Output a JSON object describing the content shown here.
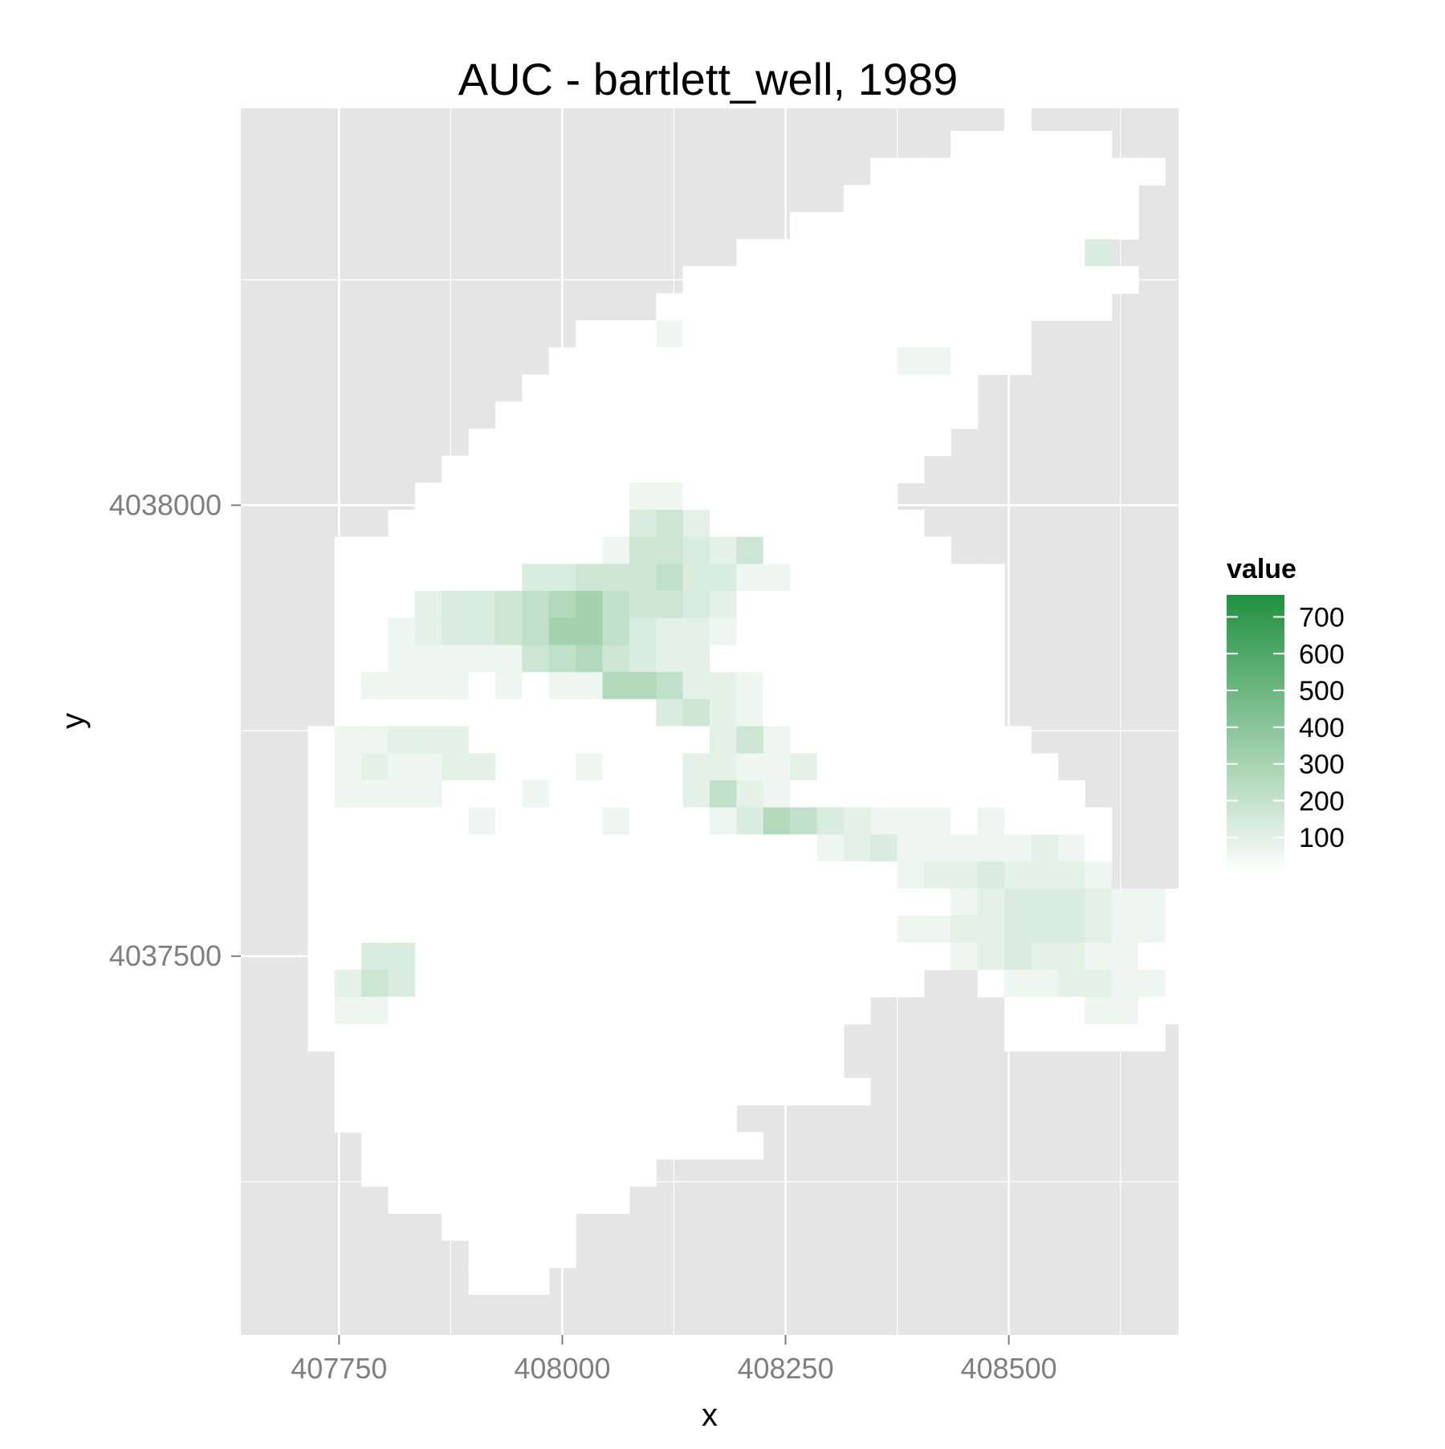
{
  "chart_data": {
    "type": "heatmap",
    "title": "AUC - bartlett_well, 1989",
    "xlabel": "x",
    "ylabel": "y",
    "xlim": [
      407640,
      408690
    ],
    "ylim": [
      4037080,
      4038440
    ],
    "x_ticks": [
      {
        "value": 407750,
        "label": "407750"
      },
      {
        "value": 408000,
        "label": "408000"
      },
      {
        "value": 408250,
        "label": "408250"
      },
      {
        "value": 408500,
        "label": "408500"
      }
    ],
    "y_ticks": [
      {
        "value": 4037500,
        "label": "4037500"
      },
      {
        "value": 4038000,
        "label": "4038000"
      }
    ],
    "x_minor_grid": [
      407875,
      408125,
      408375,
      408625
    ],
    "y_minor_grid": [
      4037250,
      4037750,
      4038250
    ],
    "grid": true,
    "cell_size": 30,
    "x_origin": 407700,
    "y_origin": 4037140,
    "fill_scale": {
      "low_color": "#FFFFFF",
      "high_color": "#21913F",
      "min": 0,
      "max": 760
    },
    "background_color": "#E5E5E5",
    "grid_color": "#FFFFFF",
    "rows_top_to_bottom": [
      "...........................0.........",
      ".........................000000......",
      "......................00000000000....",
      ".....................00000000000.....",
      "...................0000000000000.....",
      ".................00000000000003......",
      "...............00000000000000000.....",
      "..............00000000000000000......",
      "...........00010000000000000.........",
      "..........000000000000011000.........",
      ".........00000000000000000...........",
      "........000000000000000000...........",
      ".......000000000000000000............",
      "......000000000000000000.............",
      ".....000000001100000000..............",
      "....00000000034200000000.............",
      "..00000000001443240000000............",
      "..0000000334445331100000000..........",
      "..0002334567544320000000000..........",
      "..0012334577532210000000000..........",
      "..0011111456432200000000000..........",
      "..0111101011665221000000000..........",
      "..0000000000003421000000000..........",
      ".011222000000000241000000000.........",
      ".0121122000100022112000000000........",
      ".01111000100000252100000000000.......",
      ".000000100001000136532111010000......",
      ".000000000000000000012311111210......",
      ".000000000000000000000012232221......",
      ".000000000000000000000000123332110...",
      ".000000000000000000000011223332110...",
      ".003300000000000000000000123221100...",
      ".02430000000000000000000..01122110...",
      ".011000000000000000000.....00011000..",
      ".00000000000000000000......000000....",
      "..0000000000000000000................",
      "..00000000000000000000...............",
      "..000000000000000....................",
      "...000000000000000...................",
      "...00000000000.......................",
      "....000000000........................",
      "......00000..........................",
      ".......0000..........................",
      ".......000..........................."
    ],
    "level_values": [
      0,
      60,
      95,
      130,
      170,
      215,
      260,
      310
    ],
    "legend": {
      "title": "value",
      "position": "right",
      "breaks": [
        100,
        200,
        300,
        400,
        500,
        600,
        700
      ],
      "labels": [
        "100",
        "200",
        "300",
        "400",
        "500",
        "600",
        "700"
      ]
    }
  }
}
